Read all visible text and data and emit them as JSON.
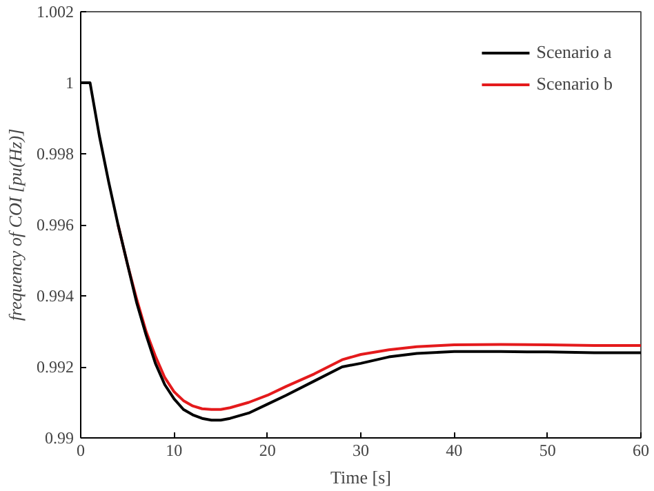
{
  "chart_data": {
    "type": "line",
    "xlabel": "Time [s]",
    "ylabel": "frequency of COI [pu(Hz)]",
    "xlim": [
      0,
      60
    ],
    "xticks": [
      0,
      10,
      20,
      30,
      40,
      50,
      60
    ],
    "ylim": [
      0.99,
      1.002
    ],
    "yticks": [
      0.99,
      0.992,
      0.994,
      0.996,
      0.998,
      1,
      1.002
    ],
    "grid": false,
    "legend": "top right",
    "line_style": "solid",
    "marker": "none",
    "x": [
      0,
      1,
      2,
      3,
      4,
      5,
      6,
      7,
      8,
      9,
      10,
      11,
      12,
      13,
      14,
      15,
      16,
      18,
      20,
      22,
      25,
      28,
      30,
      33,
      36,
      40,
      45,
      50,
      55,
      60
    ],
    "series": [
      {
        "name": "Scenario a",
        "color": "#000000",
        "values": [
          1,
          1,
          0.9985,
          0.9972,
          0.996,
          0.9949,
          0.9938,
          0.9929,
          0.9921,
          0.9915,
          0.9911,
          0.9908,
          0.99065,
          0.99055,
          0.9905,
          0.9905,
          0.99055,
          0.9907,
          0.99095,
          0.9912,
          0.9916,
          0.992,
          0.9921,
          0.99228,
          0.99238,
          0.99243,
          0.99243,
          0.99242,
          0.9924,
          0.9924
        ]
      },
      {
        "name": "Scenario b",
        "color": "#e41a1c",
        "values": [
          null,
          null,
          null,
          null,
          0.996,
          0.9949,
          0.9939,
          0.993,
          0.9923,
          0.9917,
          0.9913,
          0.99105,
          0.9909,
          0.99082,
          0.9908,
          0.9908,
          0.99085,
          0.991,
          0.9912,
          0.99145,
          0.9918,
          0.9922,
          0.99235,
          0.99248,
          0.99257,
          0.99262,
          0.99263,
          0.99262,
          0.9926,
          0.9926
        ]
      }
    ]
  }
}
